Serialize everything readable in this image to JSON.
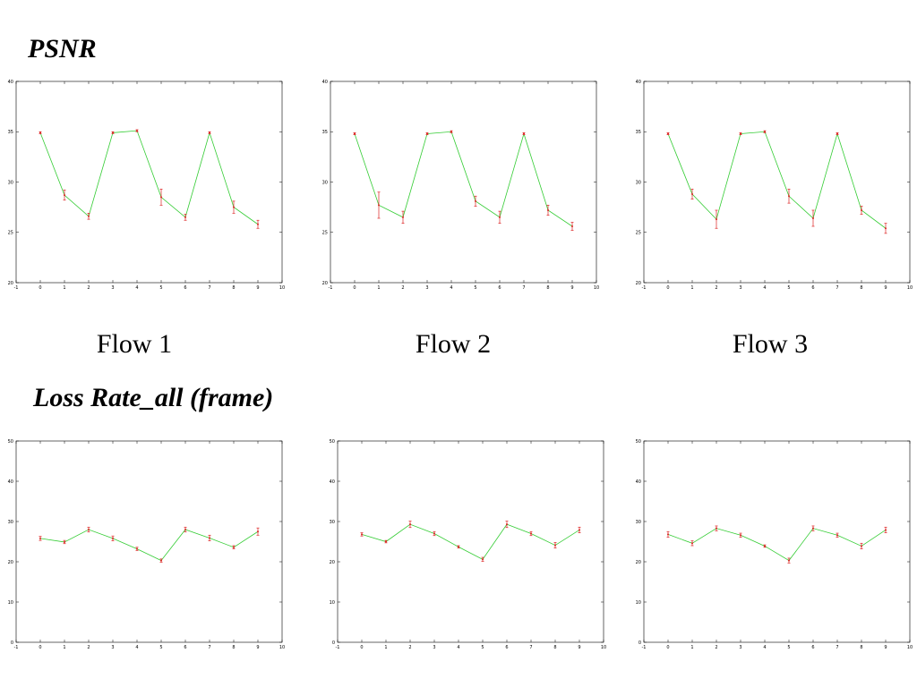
{
  "headings": {
    "psnr": "PSNR",
    "loss": "Loss Rate_all (frame)"
  },
  "flow_labels": [
    "Flow 1",
    "Flow 2",
    "Flow 3"
  ],
  "colors": {
    "line": "#33cc33",
    "error_bar": "#dd2222",
    "axis": "#000000"
  },
  "chart_data": [
    {
      "type": "line",
      "title": "",
      "xlim": [
        -1,
        10
      ],
      "ylim": [
        20,
        40
      ],
      "xticks": [
        "-1",
        "0",
        "1",
        "2",
        "3",
        "4",
        "5",
        "6",
        "7",
        "8",
        "9",
        "10"
      ],
      "yticks": [
        "20",
        "25",
        "30",
        "35",
        "40"
      ],
      "x": [
        0,
        1,
        2,
        3,
        4,
        5,
        6,
        7,
        8,
        9
      ],
      "y": [
        34.9,
        28.7,
        26.6,
        34.9,
        35.1,
        28.5,
        26.5,
        34.9,
        27.5,
        25.8
      ],
      "err": [
        0.1,
        0.5,
        0.3,
        0.1,
        0.1,
        0.8,
        0.3,
        0.1,
        0.6,
        0.4
      ],
      "grid": false
    },
    {
      "type": "line",
      "title": "",
      "xlim": [
        -1,
        10
      ],
      "ylim": [
        20,
        40
      ],
      "xticks": [
        "-1",
        "0",
        "1",
        "2",
        "3",
        "4",
        "5",
        "6",
        "7",
        "8",
        "9",
        "10"
      ],
      "yticks": [
        "20",
        "25",
        "30",
        "35",
        "40"
      ],
      "x": [
        0,
        1,
        2,
        3,
        4,
        5,
        6,
        7,
        8,
        9
      ],
      "y": [
        34.8,
        27.7,
        26.5,
        34.8,
        35.0,
        28.1,
        26.5,
        34.8,
        27.2,
        25.6
      ],
      "err": [
        0.1,
        1.3,
        0.6,
        0.1,
        0.1,
        0.5,
        0.6,
        0.1,
        0.5,
        0.4
      ],
      "grid": false
    },
    {
      "type": "line",
      "title": "",
      "xlim": [
        -1,
        10
      ],
      "ylim": [
        20,
        40
      ],
      "xticks": [
        "-1",
        "0",
        "1",
        "2",
        "3",
        "4",
        "5",
        "6",
        "7",
        "8",
        "9",
        "10"
      ],
      "yticks": [
        "20",
        "25",
        "30",
        "35",
        "40"
      ],
      "x": [
        0,
        1,
        2,
        3,
        4,
        5,
        6,
        7,
        8,
        9
      ],
      "y": [
        34.8,
        28.8,
        26.3,
        34.8,
        35.0,
        28.6,
        26.4,
        34.8,
        27.2,
        25.4
      ],
      "err": [
        0.1,
        0.5,
        0.9,
        0.1,
        0.1,
        0.7,
        0.8,
        0.1,
        0.4,
        0.5
      ],
      "grid": false
    },
    {
      "type": "line",
      "title": "",
      "xlim": [
        -1,
        10
      ],
      "ylim": [
        0,
        50
      ],
      "xticks": [
        "-1",
        "0",
        "1",
        "2",
        "3",
        "4",
        "5",
        "6",
        "7",
        "8",
        "9",
        "10"
      ],
      "yticks": [
        "0",
        "10",
        "20",
        "30",
        "40",
        "50"
      ],
      "x": [
        0,
        1,
        2,
        3,
        4,
        5,
        6,
        7,
        8,
        9
      ],
      "y": [
        25.8,
        24.9,
        28.0,
        25.8,
        23.2,
        20.3,
        28.0,
        25.9,
        23.6,
        27.5
      ],
      "err": [
        0.5,
        0.4,
        0.6,
        0.6,
        0.4,
        0.4,
        0.6,
        0.7,
        0.4,
        0.9
      ],
      "grid": false
    },
    {
      "type": "line",
      "title": "",
      "xlim": [
        -1,
        10
      ],
      "ylim": [
        0,
        50
      ],
      "xticks": [
        "-1",
        "0",
        "1",
        "2",
        "3",
        "4",
        "5",
        "6",
        "7",
        "8",
        "9",
        "10"
      ],
      "yticks": [
        "0",
        "10",
        "20",
        "30",
        "40",
        "50"
      ],
      "x": [
        0,
        1,
        2,
        3,
        4,
        5,
        6,
        7,
        8,
        9
      ],
      "y": [
        26.8,
        25.0,
        29.3,
        27.0,
        23.7,
        20.6,
        29.3,
        27.0,
        24.1,
        27.9
      ],
      "err": [
        0.4,
        0.3,
        0.8,
        0.5,
        0.3,
        0.5,
        0.8,
        0.5,
        0.7,
        0.7
      ],
      "grid": false
    },
    {
      "type": "line",
      "title": "",
      "xlim": [
        -1,
        10
      ],
      "ylim": [
        0,
        50
      ],
      "xticks": [
        "-1",
        "0",
        "1",
        "2",
        "3",
        "4",
        "5",
        "6",
        "7",
        "8",
        "9",
        "10"
      ],
      "yticks": [
        "0",
        "10",
        "20",
        "30",
        "40",
        "50"
      ],
      "x": [
        0,
        1,
        2,
        3,
        4,
        5,
        6,
        7,
        8,
        9
      ],
      "y": [
        26.8,
        24.6,
        28.3,
        26.6,
        23.9,
        20.3,
        28.3,
        26.6,
        23.9,
        27.9
      ],
      "err": [
        0.7,
        0.6,
        0.6,
        0.5,
        0.3,
        0.6,
        0.6,
        0.5,
        0.7,
        0.7
      ],
      "grid": false
    }
  ]
}
